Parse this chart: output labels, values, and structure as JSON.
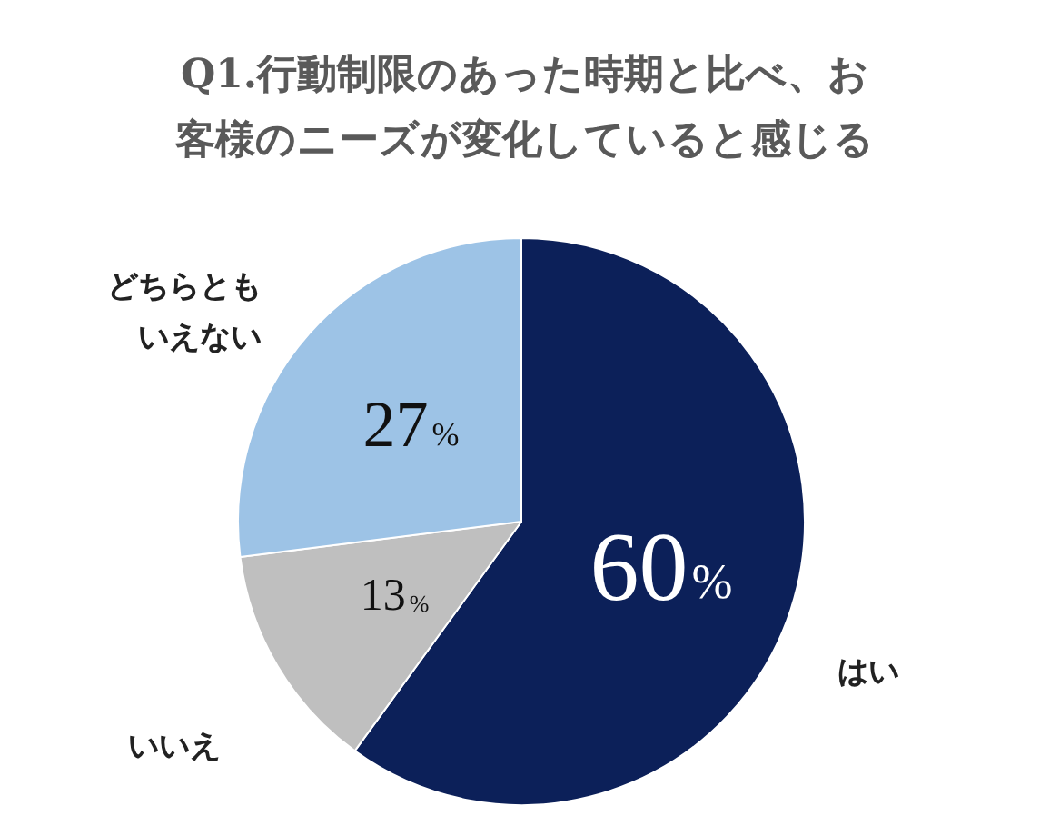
{
  "chart_data": {
    "type": "pie",
    "title": "Q1.行動制限のあった時期と比べ、お客様のニーズが変化していると感じる",
    "categories": [
      "はい",
      "いいえ",
      "どちらともいえない"
    ],
    "values": [
      60,
      13,
      27
    ],
    "colors": [
      "#0c2059",
      "#bfbfbf",
      "#9dc3e6"
    ],
    "value_labels": [
      "60%",
      "13%",
      "27%"
    ],
    "legend": false
  }
}
